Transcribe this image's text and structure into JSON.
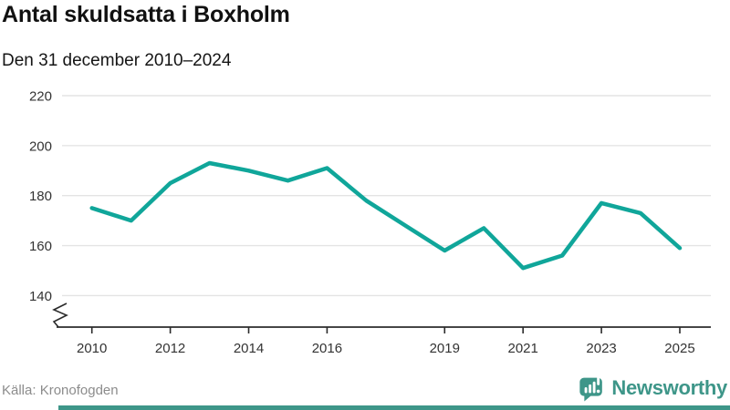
{
  "header": {
    "title": "Antal skuldsatta i Boxholm",
    "subtitle": "Den 31 december 2010–2024"
  },
  "footer": {
    "source": "Källa: Kronofogden",
    "brand": "Newsworthy"
  },
  "colors": {
    "line": "#10a69a",
    "brand": "#3e9689",
    "grid": "#e4e4e4",
    "axis": "#2b2b2b",
    "tick_text": "#333333",
    "source_text": "#8c8c8c"
  },
  "chart_data": {
    "type": "line",
    "title": "Antal skuldsatta i Boxholm",
    "subtitle": "Den 31 december 2010–2024",
    "x": [
      2010,
      2011,
      2012,
      2013,
      2014,
      2015,
      2016,
      2017,
      2018,
      2019,
      2020,
      2021,
      2022,
      2023,
      2024,
      2025
    ],
    "values": [
      175,
      170,
      185,
      193,
      190,
      186,
      191,
      178,
      168,
      158,
      167,
      151,
      156,
      177,
      173,
      159
    ],
    "series_name": "Antal skuldsatta",
    "x_tick_labels": [
      "2010",
      "2012",
      "2014",
      "2016",
      "2019",
      "2021",
      "2023",
      "2025"
    ],
    "x_tick_positions": [
      2010,
      2012,
      2014,
      2016,
      2019,
      2021,
      2023,
      2025
    ],
    "y_ticks": [
      140,
      160,
      180,
      200,
      220
    ],
    "ylim": [
      140,
      220
    ],
    "grid": "horizontal",
    "axis_break": true,
    "legend": "none",
    "line_color": "#10a69a",
    "source": "Kronofogden"
  }
}
